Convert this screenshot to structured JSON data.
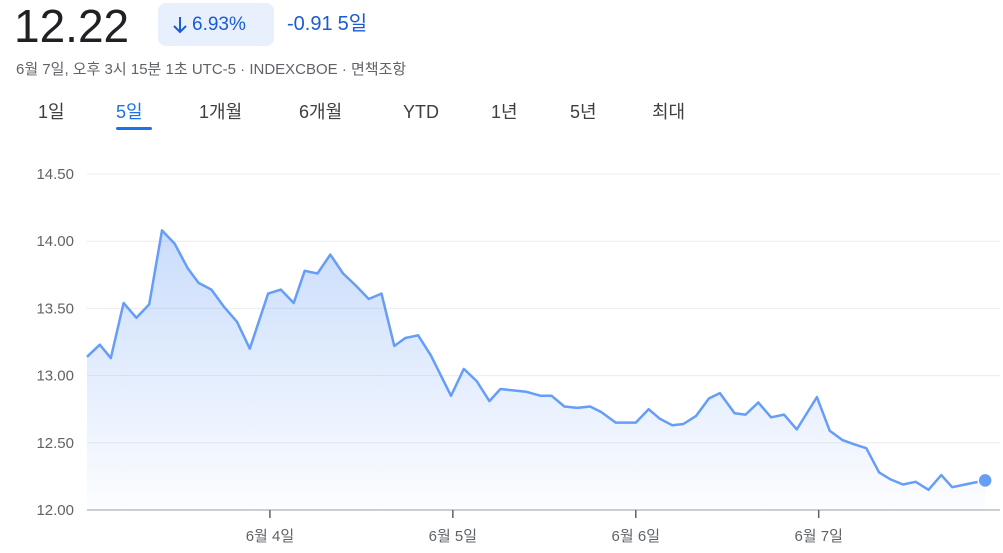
{
  "header": {
    "price": "12.22",
    "change_percent": "6.93%",
    "change_value": "-0.91",
    "period": "5일",
    "subtitle": "6월 7일, 오후 3시 15분 1초 UTC-5 · INDEXCBOE · 면책조항"
  },
  "tabs": [
    "1일",
    "5일",
    "1개월",
    "6개월",
    "YTD",
    "1년",
    "5년",
    "최대"
  ],
  "selected_tab": 1,
  "chart_data": {
    "type": "area",
    "color": "#669df6",
    "x": [
      0,
      0.07,
      0.13,
      0.2,
      0.27,
      0.34,
      0.41,
      0.48,
      0.55,
      0.61,
      0.68,
      0.75,
      0.82,
      0.89,
      0.99,
      1.06,
      1.13,
      1.19,
      1.26,
      1.33,
      1.4,
      1.47,
      1.54,
      1.61,
      1.68,
      1.74,
      1.81,
      1.88,
      1.99,
      2.06,
      2.13,
      2.2,
      2.26,
      2.33,
      2.4,
      2.48,
      2.54,
      2.61,
      2.68,
      2.75,
      2.81,
      2.89,
      2.96,
      3.0,
      3.07,
      3.13,
      3.2,
      3.26,
      3.33,
      3.4,
      3.46,
      3.54,
      3.6,
      3.67,
      3.74,
      3.81,
      3.88,
      3.99,
      4.06,
      4.13,
      4.19,
      4.26,
      4.33,
      4.39,
      4.46,
      4.53,
      4.6,
      4.67,
      4.73,
      4.8,
      4.91
    ],
    "values": [
      13.14,
      13.23,
      13.13,
      13.54,
      13.43,
      13.53,
      14.08,
      13.98,
      13.8,
      13.69,
      13.64,
      13.51,
      13.4,
      13.2,
      13.61,
      13.64,
      13.54,
      13.78,
      13.76,
      13.9,
      13.76,
      13.67,
      13.57,
      13.61,
      13.22,
      13.28,
      13.3,
      13.15,
      12.85,
      13.05,
      12.96,
      12.81,
      12.9,
      12.89,
      12.88,
      12.85,
      12.85,
      12.77,
      12.76,
      12.77,
      12.73,
      12.65,
      12.65,
      12.65,
      12.75,
      12.68,
      12.63,
      12.64,
      12.7,
      12.83,
      12.87,
      12.72,
      12.71,
      12.8,
      12.69,
      12.71,
      12.6,
      12.84,
      12.59,
      12.52,
      12.49,
      12.46,
      12.28,
      12.23,
      12.19,
      12.21,
      12.15,
      12.26,
      12.17,
      12.19,
      12.22
    ],
    "xlim": [
      0,
      4.92
    ],
    "xticks": [
      {
        "value": 1,
        "label": "6월 4일"
      },
      {
        "value": 2,
        "label": "6월 5일"
      },
      {
        "value": 3,
        "label": "6월 6일"
      },
      {
        "value": 4,
        "label": "6월 7일"
      }
    ],
    "ylim": [
      12,
      14.5
    ],
    "yticks": [
      {
        "value": 12,
        "label": "12.00"
      },
      {
        "value": 12.5,
        "label": "12.50"
      },
      {
        "value": 13,
        "label": "13.00"
      },
      {
        "value": 13.5,
        "label": "13.50"
      },
      {
        "value": 14,
        "label": "14.00"
      },
      {
        "value": 14.5,
        "label": "14.50"
      }
    ],
    "grid": true
  }
}
